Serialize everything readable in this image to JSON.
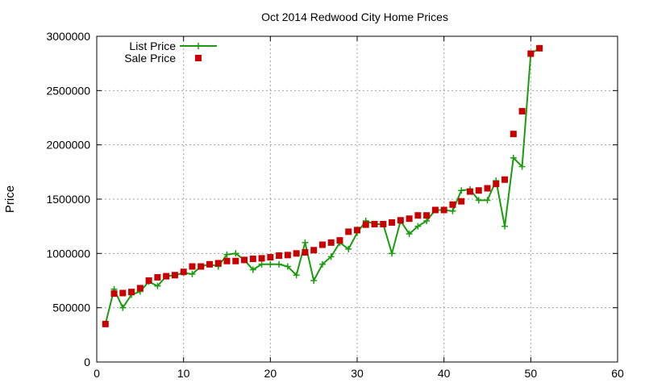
{
  "chart_data": {
    "type": "line",
    "title": "Oct 2014 Redwood City Home Prices",
    "xlabel": "",
    "ylabel": "Price",
    "xlim": [
      0,
      60
    ],
    "ylim": [
      0,
      3000000
    ],
    "x_ticks": [
      0,
      10,
      20,
      30,
      40,
      50,
      60
    ],
    "y_ticks": [
      0,
      500000,
      1000000,
      1500000,
      2000000,
      2500000,
      3000000
    ],
    "x_tick_labels": [
      "0",
      "10",
      "20",
      "30",
      "40",
      "50",
      "60"
    ],
    "y_tick_labels": [
      "0",
      "500000",
      "1000000",
      "1500000",
      "2000000",
      "2500000",
      "3000000"
    ],
    "grid": true,
    "legend_position": "top-left",
    "x": [
      1,
      2,
      3,
      4,
      5,
      6,
      7,
      8,
      9,
      10,
      11,
      12,
      13,
      14,
      15,
      16,
      17,
      18,
      19,
      20,
      21,
      22,
      23,
      24,
      25,
      26,
      27,
      28,
      29,
      30,
      31,
      32,
      33,
      34,
      35,
      36,
      37,
      38,
      39,
      40,
      41,
      42,
      43,
      44,
      45,
      46,
      47,
      48,
      49,
      50,
      51
    ],
    "series": [
      {
        "name": "List Price",
        "style": "line-with-plus-markers",
        "color": "#1a9c0e",
        "values": [
          350000,
          670000,
          500000,
          620000,
          650000,
          740000,
          700000,
          790000,
          800000,
          820000,
          810000,
          880000,
          900000,
          880000,
          990000,
          1000000,
          940000,
          850000,
          900000,
          900000,
          900000,
          880000,
          800000,
          1100000,
          750000,
          900000,
          970000,
          1100000,
          1040000,
          1190000,
          1300000,
          1270000,
          1270000,
          1000000,
          1300000,
          1180000,
          1250000,
          1300000,
          1400000,
          1400000,
          1390000,
          1580000,
          1590000,
          1490000,
          1490000,
          1670000,
          1250000,
          1880000,
          1800000,
          2840000,
          2890000
        ]
      },
      {
        "name": "Sale Price",
        "style": "square-markers",
        "color": "#c80000",
        "values": [
          350000,
          630000,
          635000,
          645000,
          680000,
          750000,
          780000,
          790000,
          800000,
          830000,
          880000,
          880000,
          900000,
          910000,
          930000,
          930000,
          940000,
          950000,
          955000,
          965000,
          980000,
          985000,
          1000000,
          1010000,
          1030000,
          1080000,
          1100000,
          1120000,
          1200000,
          1215000,
          1265000,
          1270000,
          1270000,
          1285000,
          1305000,
          1320000,
          1350000,
          1350000,
          1400000,
          1400000,
          1450000,
          1480000,
          1570000,
          1580000,
          1600000,
          1640000,
          1680000,
          2100000,
          2310000,
          2840000,
          2890000
        ]
      }
    ]
  }
}
